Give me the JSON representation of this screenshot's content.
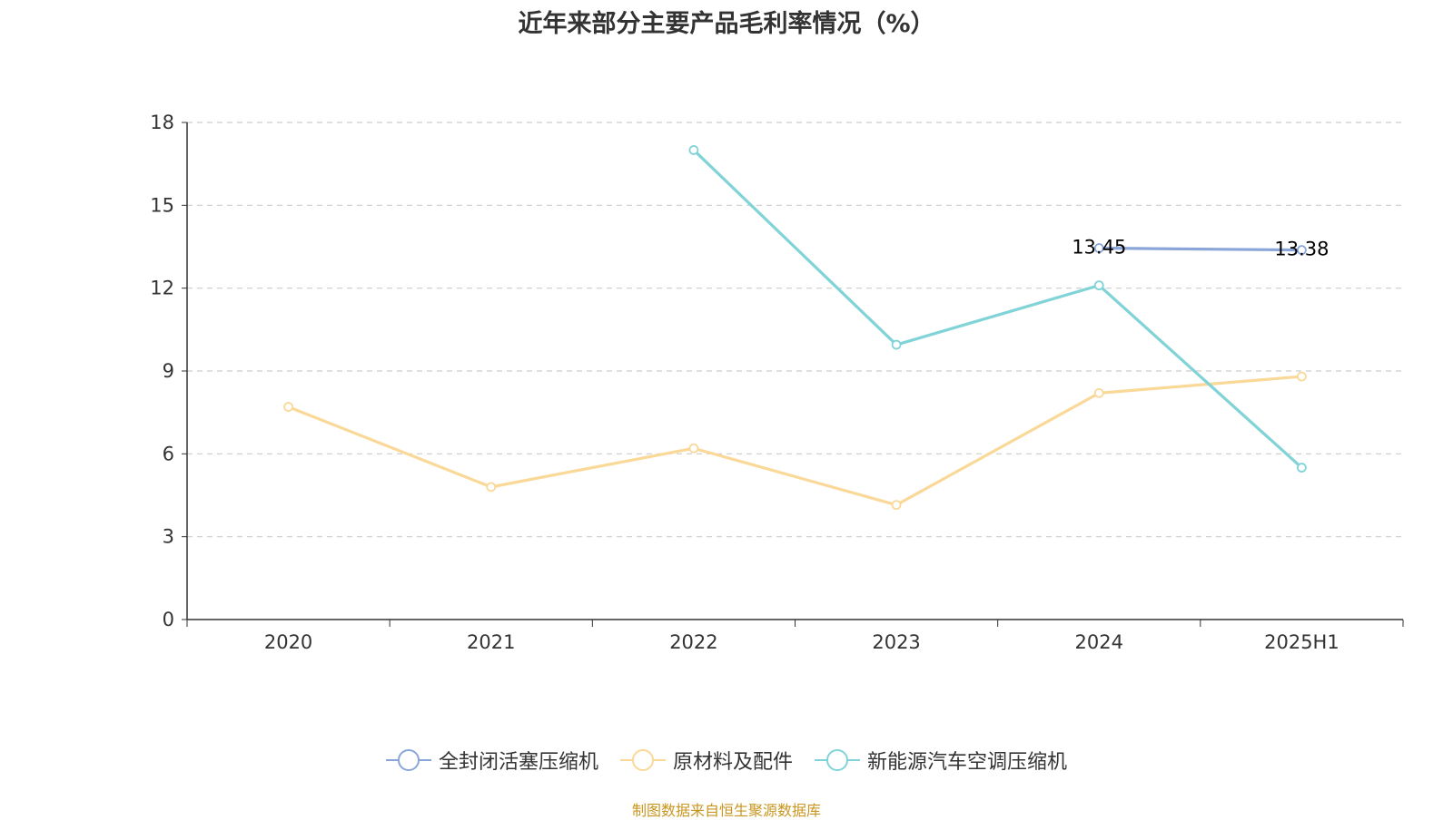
{
  "chart_data": {
    "type": "line",
    "title": "近年来部分主要产品毛利率情况（%）",
    "categories": [
      "2020",
      "2021",
      "2022",
      "2023",
      "2024",
      "2025H1"
    ],
    "ylim": [
      0,
      18
    ],
    "yticks": [
      0,
      3,
      6,
      9,
      12,
      15,
      18
    ],
    "grid": true,
    "legend_position": "bottom",
    "series": [
      {
        "name": "全封闭活塞压缩机",
        "color": "#8aa6d8",
        "values": [
          null,
          null,
          null,
          null,
          13.45,
          13.38
        ],
        "show_labels": true
      },
      {
        "name": "原材料及配件",
        "color": "#f9d898",
        "values": [
          7.7,
          4.8,
          6.2,
          4.15,
          8.2,
          8.8
        ],
        "show_labels": false
      },
      {
        "name": "新能源汽车空调压缩机",
        "color": "#80d3d7",
        "values": [
          null,
          null,
          17.0,
          9.95,
          12.1,
          5.5
        ],
        "show_labels": false
      }
    ]
  },
  "footer": {
    "source": "制图数据来自恒生聚源数据库"
  }
}
